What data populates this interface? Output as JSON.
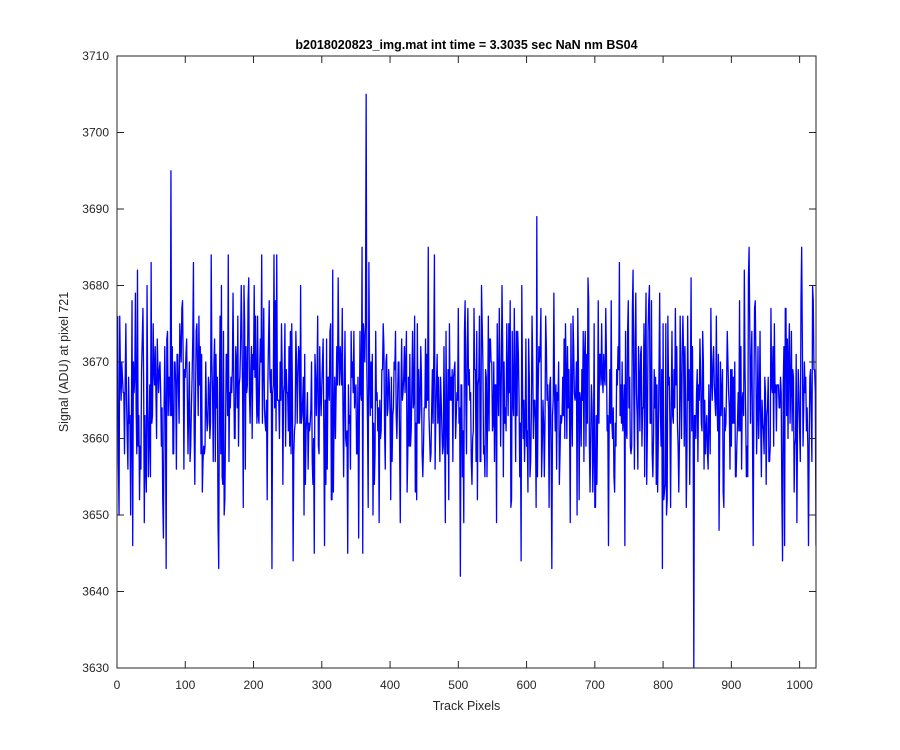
{
  "chart_data": {
    "type": "line",
    "title": "b2018020823_img.mat int time = 3.3035 sec  NaN nm BS04",
    "xlabel": "Track Pixels",
    "ylabel": "Signal (ADU) at pixel 721",
    "xlim": [
      0,
      1024
    ],
    "ylim": [
      3630,
      3710
    ],
    "xticks": [
      0,
      100,
      200,
      300,
      400,
      500,
      600,
      700,
      800,
      900,
      1000
    ],
    "yticks": [
      3630,
      3640,
      3650,
      3660,
      3670,
      3680,
      3690,
      3700,
      3710
    ],
    "grid": false,
    "legend": "none",
    "line_color": "#0000ff",
    "noise_model": {
      "n_points": 1024,
      "x_start": 1,
      "mean": 3665,
      "std": 7.5,
      "clip_min": 3643,
      "clip_max": 3685
    },
    "notable_points": [
      {
        "x": 2,
        "y": 3657
      },
      {
        "x": 7,
        "y": 3670
      },
      {
        "x": 13,
        "y": 3675
      },
      {
        "x": 23,
        "y": 3646
      },
      {
        "x": 27,
        "y": 3679
      },
      {
        "x": 33,
        "y": 3652
      },
      {
        "x": 72,
        "y": 3643
      },
      {
        "x": 79,
        "y": 3695
      },
      {
        "x": 92,
        "y": 3675
      },
      {
        "x": 138,
        "y": 3684
      },
      {
        "x": 148,
        "y": 3649
      },
      {
        "x": 193,
        "y": 3681
      },
      {
        "x": 234,
        "y": 3684
      },
      {
        "x": 258,
        "y": 3644
      },
      {
        "x": 330,
        "y": 3677
      },
      {
        "x": 360,
        "y": 3645
      },
      {
        "x": 365,
        "y": 3705
      },
      {
        "x": 368,
        "y": 3651
      },
      {
        "x": 503,
        "y": 3642
      },
      {
        "x": 557,
        "y": 3675
      },
      {
        "x": 592,
        "y": 3644
      },
      {
        "x": 615,
        "y": 3689
      },
      {
        "x": 690,
        "y": 3681
      },
      {
        "x": 845,
        "y": 3630
      },
      {
        "x": 926,
        "y": 3685
      },
      {
        "x": 975,
        "y": 3644
      },
      {
        "x": 1003,
        "y": 3685
      },
      {
        "x": 1020,
        "y": 3678
      },
      {
        "x": 1024,
        "y": 3646
      }
    ]
  }
}
